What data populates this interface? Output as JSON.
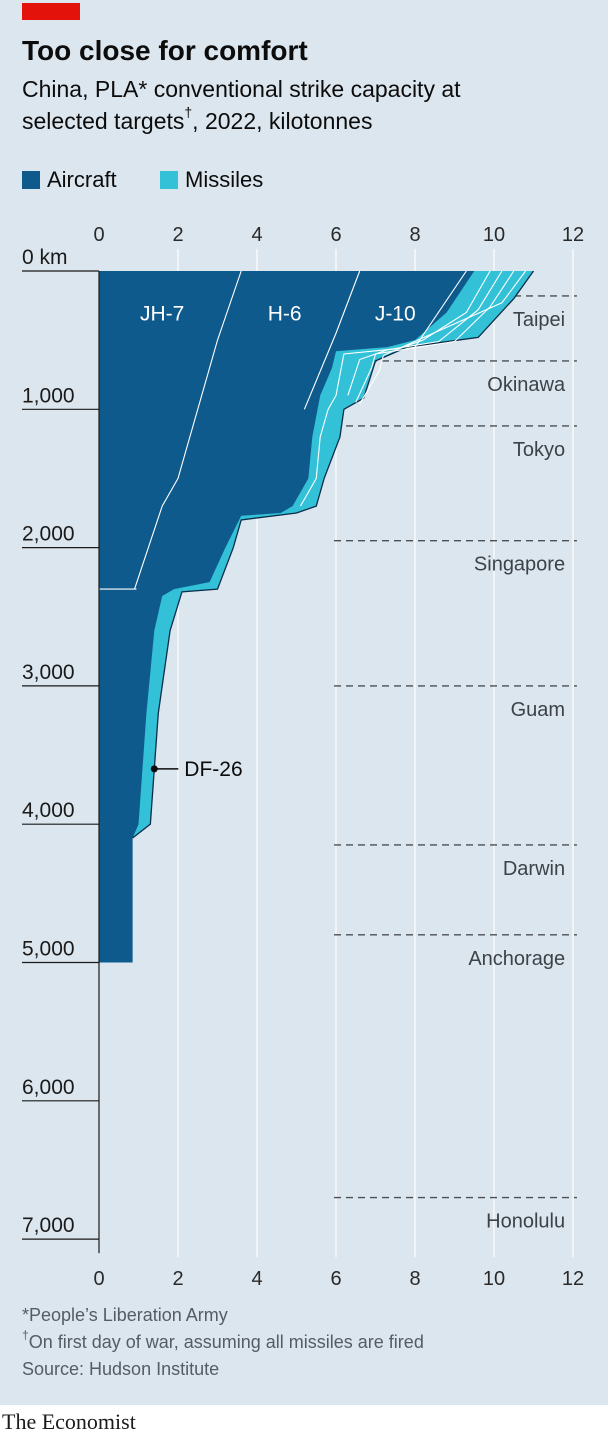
{
  "title": "Too close for comfort",
  "subtitle_line1": "China, PLA* conventional strike capacity at",
  "subtitle_line2_a": "selected targets",
  "subtitle_dagger": "†",
  "subtitle_line2_b": ", 2022, kilotonnes",
  "legend": [
    {
      "label": "Aircraft",
      "color": "#0f5a8c"
    },
    {
      "label": "Missiles",
      "color": "#33c1d8"
    }
  ],
  "footnotes": {
    "pla": "*People’s Liberation Army",
    "dagger": "†",
    "first_day": "On first day of war, assuming all missiles are fired",
    "source": "Source: Hudson Institute"
  },
  "brand": "The Economist",
  "chart_data": {
    "type": "area",
    "x_axis": {
      "range": [
        0,
        12
      ],
      "ticks": [
        0,
        2,
        4,
        6,
        8,
        10,
        12
      ],
      "position": "top and bottom"
    },
    "y_axis": {
      "range": [
        0,
        7000
      ],
      "reversed": true,
      "ticks": [
        0,
        1000,
        2000,
        3000,
        4000,
        5000,
        6000,
        7000
      ],
      "tick_labels": [
        "0 km",
        "1,000",
        "2,000",
        "3,000",
        "4,000",
        "5,000",
        "6,000",
        "7,000"
      ]
    },
    "colors": {
      "aircraft": "#0f5a8c",
      "missiles": "#33c1d8",
      "line": "#ffffff"
    },
    "aircraft_boundary": [
      [
        9.5,
        0
      ],
      [
        8.8,
        300
      ],
      [
        8.0,
        500
      ],
      [
        7.3,
        550
      ],
      [
        6.0,
        580
      ],
      [
        5.9,
        700
      ],
      [
        5.6,
        900
      ],
      [
        5.4,
        1200
      ],
      [
        5.3,
        1500
      ],
      [
        4.9,
        1700
      ],
      [
        4.6,
        1750
      ],
      [
        3.6,
        1770
      ],
      [
        3.2,
        2000
      ],
      [
        2.8,
        2250
      ],
      [
        1.9,
        2300
      ],
      [
        1.6,
        2350
      ],
      [
        1.4,
        2600
      ],
      [
        1.2,
        3200
      ],
      [
        1.0,
        4000
      ],
      [
        0.85,
        4100
      ],
      [
        0.85,
        5000
      ],
      [
        0.0,
        5000
      ]
    ],
    "total_boundary": [
      [
        11.0,
        0
      ],
      [
        10.5,
        200
      ],
      [
        9.6,
        480
      ],
      [
        7.8,
        550
      ],
      [
        7.4,
        600
      ],
      [
        7.0,
        650
      ],
      [
        6.7,
        920
      ],
      [
        6.2,
        1000
      ],
      [
        6.1,
        1200
      ],
      [
        5.7,
        1500
      ],
      [
        5.5,
        1700
      ],
      [
        5.0,
        1750
      ],
      [
        3.6,
        1800
      ],
      [
        3.4,
        2000
      ],
      [
        3.0,
        2300
      ],
      [
        2.1,
        2320
      ],
      [
        1.8,
        2600
      ],
      [
        1.5,
        3200
      ],
      [
        1.3,
        4000
      ],
      [
        0.85,
        4100
      ]
    ],
    "aircraft_series": [
      {
        "name": "JH-7",
        "range_km": 2300,
        "ends_at": [
          [
            0.9,
            2300
          ],
          [
            1.6,
            1700
          ],
          [
            2.0,
            1500
          ],
          [
            3.0,
            500
          ],
          [
            3.6,
            0
          ]
        ]
      },
      {
        "name": "H-6",
        "ends_at": [
          [
            5.2,
            1000
          ],
          [
            6.0,
            450
          ],
          [
            6.6,
            0
          ]
        ]
      },
      {
        "name": "J-10",
        "ends_at": [
          [
            8.0,
            550
          ],
          [
            9.3,
            0
          ]
        ]
      }
    ],
    "missile_lines": [
      [
        [
          9.9,
          0
        ],
        [
          9.3,
          300
        ],
        [
          8.2,
          500
        ],
        [
          7.6,
          560
        ],
        [
          6.2,
          600
        ],
        [
          6.0,
          900
        ],
        [
          5.8,
          1000
        ],
        [
          5.6,
          1200
        ],
        [
          5.5,
          1500
        ],
        [
          5.1,
          1700
        ]
      ],
      [
        [
          10.2,
          0
        ],
        [
          9.6,
          280
        ],
        [
          8.6,
          510
        ],
        [
          7.3,
          570
        ],
        [
          6.6,
          640
        ],
        [
          6.3,
          900
        ]
      ],
      [
        [
          10.5,
          0
        ],
        [
          9.9,
          260
        ],
        [
          9.0,
          510
        ],
        [
          7.0,
          600
        ],
        [
          6.9,
          700
        ],
        [
          6.5,
          950
        ]
      ],
      [
        [
          10.8,
          0
        ],
        [
          10.2,
          230
        ],
        [
          7.2,
          610
        ],
        [
          7.1,
          720
        ],
        [
          6.6,
          960
        ]
      ]
    ],
    "annotation": {
      "label": "DF-26",
      "x": 1.4,
      "y": 3600
    },
    "targets": [
      {
        "name": "Taipei",
        "distance_km": 180
      },
      {
        "name": "Okinawa",
        "distance_km": 650
      },
      {
        "name": "Tokyo",
        "distance_km": 1120
      },
      {
        "name": "Singapore",
        "distance_km": 1950
      },
      {
        "name": "Guam",
        "distance_km": 3000
      },
      {
        "name": "Darwin",
        "distance_km": 4150
      },
      {
        "name": "Anchorage",
        "distance_km": 4800
      },
      {
        "name": "Honolulu",
        "distance_km": 6700
      }
    ]
  }
}
